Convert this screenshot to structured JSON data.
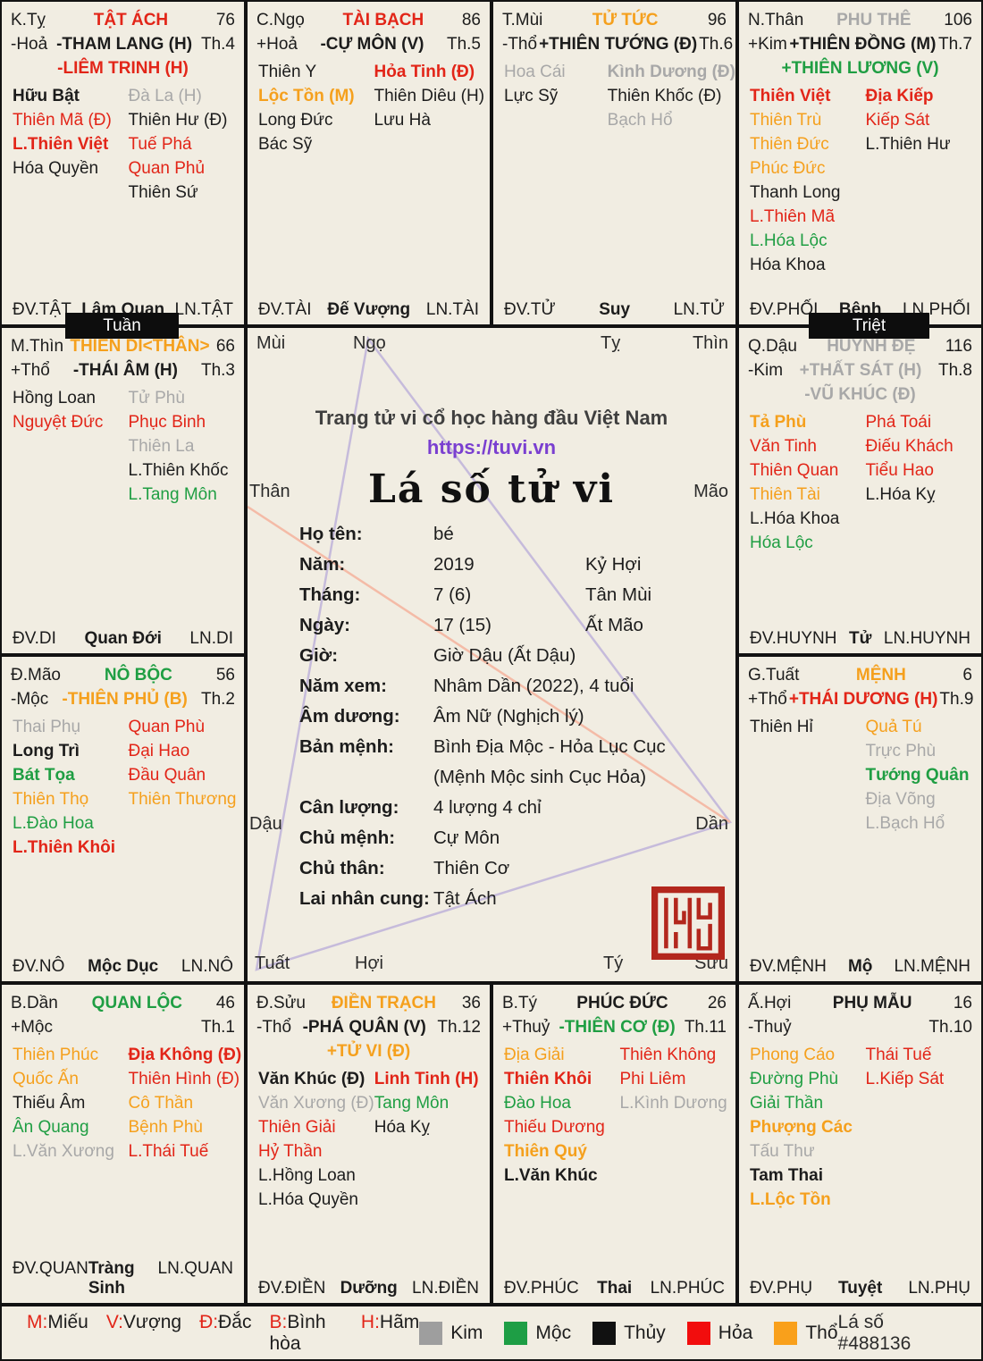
{
  "meta": {
    "tagline": "Trang tử vi cổ học hàng đầu Việt Nam",
    "url": "https://tuvi.vn",
    "title": "Lá số tử vi",
    "chart_id": "Lá số #488136"
  },
  "badges": {
    "tuan": "Tuần",
    "triet": "Triệt"
  },
  "center": {
    "corners": {
      "mui": "Mùi",
      "ngo": "Ngọ",
      "ty": "Tỵ",
      "thin": "Thìn",
      "than": "Thân",
      "mao": "Mão",
      "dau": "Dậu",
      "dan": "Dần",
      "tuat": "Tuất",
      "hoi": "Hợi",
      "ti": "Tý",
      "suu": "Sửu"
    },
    "info_rows": [
      {
        "label": "Họ tên:",
        "value": "bé",
        "extra": ""
      },
      {
        "label": "Năm:",
        "value": "2019",
        "extra": "Kỷ Hợi"
      },
      {
        "label": "Tháng:",
        "value": "7 (6)",
        "extra": "Tân Mùi"
      },
      {
        "label": "Ngày:",
        "value": "17 (15)",
        "extra": "Ất Mão"
      },
      {
        "label": "Giờ:",
        "value": "Giờ Dậu (Ất Dậu)",
        "extra": ""
      },
      {
        "label": "Năm xem:",
        "value": "Nhâm Dần (2022), 4 tuổi",
        "extra": ""
      },
      {
        "label": "Âm dương:",
        "value": "Âm Nữ (Nghịch lý)",
        "extra": ""
      },
      {
        "label": "Bản mệnh:",
        "value": "Bình Địa Mộc - Hỏa Lục Cục",
        "extra": ""
      },
      {
        "label": "",
        "value": "(Mệnh Mộc sinh Cục Hỏa)",
        "extra": ""
      },
      {
        "label": "Cân lượng:",
        "value": "4 lượng 4 chỉ",
        "extra": ""
      },
      {
        "label": "Chủ mệnh:",
        "value": "Cự Môn",
        "extra": ""
      },
      {
        "label": "Chủ thân:",
        "value": "Thiên Cơ",
        "extra": ""
      },
      {
        "label": "Lai nhân cung:",
        "value": "Tật Ách",
        "extra": ""
      }
    ]
  },
  "palaces": [
    {
      "branch": "K.Tỵ",
      "palace": "TẬT ÁCH",
      "palace_c": "r",
      "num": "76",
      "elem": "-Hoả",
      "star1": "-THAM LANG (H)",
      "star1_c": "k",
      "th": "Th.4",
      "star2": "-LIÊM TRINH (H)",
      "star2_c": "r",
      "left": [
        {
          "t": "Hữu Bật",
          "c": "k",
          "b": 1
        },
        {
          "t": "Thiên Mã (Đ)",
          "c": "r"
        },
        {
          "t": "L.Thiên Việt",
          "c": "r",
          "b": 1
        },
        {
          "t": "Hóa Quyền",
          "c": "k"
        }
      ],
      "right": [
        {
          "t": "Đà La (H)",
          "c": "a"
        },
        {
          "t": "Thiên Hư (Đ)",
          "c": "k"
        },
        {
          "t": "Tuế Phá",
          "c": "r"
        },
        {
          "t": "Quan Phủ",
          "c": "r"
        },
        {
          "t": "Thiên Sứ",
          "c": "k"
        }
      ],
      "foot_l": "ĐV.TẬT",
      "foot_m": "Lâm Quan",
      "foot_r": "LN.TẬT"
    },
    {
      "branch": "C.Ngọ",
      "palace": "TÀI BẠCH",
      "palace_c": "r",
      "num": "86",
      "elem": "+Hoả",
      "star1": "-CỰ MÔN (V)",
      "star1_c": "k",
      "th": "Th.5",
      "left": [
        {
          "t": "Thiên Y",
          "c": "k"
        },
        {
          "t": "Lộc Tồn (M)",
          "c": "o",
          "b": 1
        },
        {
          "t": "Long Đức",
          "c": "k"
        },
        {
          "t": "Bác Sỹ",
          "c": "k"
        }
      ],
      "right": [
        {
          "t": "Hỏa Tinh (Đ)",
          "c": "r",
          "b": 1
        },
        {
          "t": "Thiên Diêu (H)",
          "c": "k"
        },
        {
          "t": "Lưu Hà",
          "c": "k"
        }
      ],
      "foot_l": "ĐV.TÀI",
      "foot_m": "Đế Vượng",
      "foot_r": "LN.TÀI"
    },
    {
      "branch": "T.Mùi",
      "palace": "TỬ TỨC",
      "palace_c": "o",
      "num": "96",
      "elem": "-Thổ",
      "star1": "+THIÊN TƯỚNG (Đ)",
      "star1_c": "k",
      "th": "Th.6",
      "left": [
        {
          "t": "Hoa Cái",
          "c": "a"
        },
        {
          "t": "Lực Sỹ",
          "c": "k"
        }
      ],
      "right": [
        {
          "t": "Kình Dương (Đ)",
          "c": "a",
          "b": 1
        },
        {
          "t": "Thiên Khốc (Đ)",
          "c": "k"
        },
        {
          "t": "Bạch Hổ",
          "c": "a"
        }
      ],
      "foot_l": "ĐV.TỬ",
      "foot_m": "Suy",
      "foot_r": "LN.TỬ"
    },
    {
      "branch": "N.Thân",
      "palace": "PHU THÊ",
      "palace_c": "a",
      "num": "106",
      "elem": "+Kim",
      "star1": "+THIÊN ĐỒNG (M)",
      "star1_c": "k",
      "th": "Th.7",
      "star2": "+THIÊN LƯƠNG (V)",
      "star2_c": "g",
      "left": [
        {
          "t": "Thiên Việt",
          "c": "r",
          "b": 1
        },
        {
          "t": "Thiên Trù",
          "c": "o"
        },
        {
          "t": "Thiên Đức",
          "c": "o"
        },
        {
          "t": "Phúc Đức",
          "c": "o"
        },
        {
          "t": "Thanh Long",
          "c": "k"
        },
        {
          "t": "L.Thiên Mã",
          "c": "r"
        },
        {
          "t": "L.Hóa Lộc",
          "c": "g"
        },
        {
          "t": "Hóa Khoa",
          "c": "k"
        }
      ],
      "right": [
        {
          "t": "Địa Kiếp",
          "c": "r",
          "b": 1
        },
        {
          "t": "Kiếp Sát",
          "c": "r"
        },
        {
          "t": "L.Thiên Hư",
          "c": "k"
        }
      ],
      "foot_l": "ĐV.PHỐI",
      "foot_m": "Bệnh",
      "foot_r": "LN.PHỐI"
    },
    {
      "branch": "M.Thìn",
      "palace": "THIÊN DI<THÂN>",
      "palace_c": "o",
      "num": "66",
      "elem": "+Thổ",
      "star1": "-THÁI ÂM (H)",
      "star1_c": "k",
      "th": "Th.3",
      "left": [
        {
          "t": "Hồng Loan",
          "c": "k"
        },
        {
          "t": "Nguyệt Đức",
          "c": "r"
        }
      ],
      "right": [
        {
          "t": "Tử Phù",
          "c": "a"
        },
        {
          "t": "Phục Binh",
          "c": "r"
        },
        {
          "t": "Thiên La",
          "c": "a"
        },
        {
          "t": "L.Thiên Khốc",
          "c": "k"
        },
        {
          "t": "L.Tang Môn",
          "c": "g"
        }
      ],
      "foot_l": "ĐV.DI",
      "foot_m": "Quan Đới",
      "foot_r": "LN.DI"
    },
    {
      "branch": "Q.Dậu",
      "palace": "HUYNH ĐỆ",
      "palace_c": "a",
      "num": "116",
      "elem": "-Kim",
      "star1": "+THẤT SÁT (H)",
      "star1_c": "a",
      "th": "Th.8",
      "star2": "-VŨ KHÚC (Đ)",
      "star2_c": "a",
      "left": [
        {
          "t": "Tả Phù",
          "c": "o",
          "b": 1
        },
        {
          "t": "Văn Tinh",
          "c": "r"
        },
        {
          "t": "Thiên Quan",
          "c": "r"
        },
        {
          "t": "Thiên Tài",
          "c": "o"
        },
        {
          "t": "L.Hóa Khoa",
          "c": "k"
        },
        {
          "t": "Hóa Lộc",
          "c": "g"
        }
      ],
      "right": [
        {
          "t": "Phá Toái",
          "c": "r"
        },
        {
          "t": "Điếu Khách",
          "c": "r"
        },
        {
          "t": "Tiểu Hao",
          "c": "r"
        },
        {
          "t": "L.Hóa Kỵ",
          "c": "k"
        }
      ],
      "foot_l": "ĐV.HUYNH",
      "foot_m": "Tử",
      "foot_r": "LN.HUYNH"
    },
    {
      "branch": "Đ.Mão",
      "palace": "NÔ BỘC",
      "palace_c": "g",
      "num": "56",
      "elem": "-Mộc",
      "star1": "-THIÊN PHỦ (B)",
      "star1_c": "o",
      "th": "Th.2",
      "left": [
        {
          "t": "Thai Phụ",
          "c": "a"
        },
        {
          "t": "Long Trì",
          "c": "k",
          "b": 1
        },
        {
          "t": "Bát Tọa",
          "c": "g",
          "b": 1
        },
        {
          "t": "Thiên Thọ",
          "c": "o"
        },
        {
          "t": "L.Đào Hoa",
          "c": "g"
        },
        {
          "t": "L.Thiên Khôi",
          "c": "r",
          "b": 1
        }
      ],
      "right": [
        {
          "t": "Quan Phù",
          "c": "r"
        },
        {
          "t": "Đại Hao",
          "c": "r"
        },
        {
          "t": "Đầu Quân",
          "c": "r"
        },
        {
          "t": "Thiên Thương",
          "c": "o"
        }
      ],
      "foot_l": "ĐV.NÔ",
      "foot_m": "Mộc Dục",
      "foot_r": "LN.NÔ"
    },
    {
      "branch": "G.Tuất",
      "palace": "MỆNH",
      "palace_c": "o",
      "num": "6",
      "elem": "+Thổ",
      "star1": "+THÁI DƯƠNG (H)",
      "star1_c": "r",
      "th": "Th.9",
      "left": [
        {
          "t": "Thiên Hỉ",
          "c": "k"
        }
      ],
      "right": [
        {
          "t": "Quả Tú",
          "c": "o"
        },
        {
          "t": "Trực Phù",
          "c": "a"
        },
        {
          "t": "Tướng Quân",
          "c": "g",
          "b": 1
        },
        {
          "t": "Địa Võng",
          "c": "a"
        },
        {
          "t": "L.Bạch Hổ",
          "c": "a"
        }
      ],
      "foot_l": "ĐV.MỆNH",
      "foot_m": "Mộ",
      "foot_r": "LN.MỆNH"
    },
    {
      "branch": "B.Dần",
      "palace": "QUAN LỘC",
      "palace_c": "g",
      "num": "46",
      "elem": "+Mộc",
      "star1": "",
      "star1_c": "k",
      "th": "Th.1",
      "left": [
        {
          "t": "Thiên Phúc",
          "c": "o"
        },
        {
          "t": "Quốc Ấn",
          "c": "o"
        },
        {
          "t": "Thiếu Âm",
          "c": "k"
        },
        {
          "t": "Ân Quang",
          "c": "g"
        },
        {
          "t": "L.Văn Xương",
          "c": "a"
        }
      ],
      "right": [
        {
          "t": "Địa Không (Đ)",
          "c": "r",
          "b": 1
        },
        {
          "t": "Thiên Hình (Đ)",
          "c": "r"
        },
        {
          "t": "Cô Thần",
          "c": "o"
        },
        {
          "t": "Bệnh Phù",
          "c": "o"
        },
        {
          "t": "L.Thái Tuế",
          "c": "r"
        }
      ],
      "foot_l": "ĐV.QUAN",
      "foot_m": "Tràng Sinh",
      "foot_r": "LN.QUAN"
    },
    {
      "branch": "Đ.Sửu",
      "palace": "ĐIỀN TRẠCH",
      "palace_c": "o",
      "num": "36",
      "elem": "-Thổ",
      "star1": "-PHÁ QUÂN (V)",
      "star1_c": "k",
      "th": "Th.12",
      "star2": "+TỬ VI (Đ)",
      "star2_c": "o",
      "left": [
        {
          "t": "Văn Khúc (Đ)",
          "c": "k",
          "b": 1
        },
        {
          "t": "Văn Xương (Đ)",
          "c": "a"
        },
        {
          "t": "Thiên Giải",
          "c": "r"
        },
        {
          "t": "Hỷ Thần",
          "c": "r"
        },
        {
          "t": "L.Hồng Loan",
          "c": "k"
        },
        {
          "t": "L.Hóa Quyền",
          "c": "k"
        }
      ],
      "right": [
        {
          "t": "Linh Tinh (H)",
          "c": "r",
          "b": 1
        },
        {
          "t": "Tang Môn",
          "c": "g"
        },
        {
          "t": "Hóa Kỵ",
          "c": "k"
        }
      ],
      "foot_l": "ĐV.ĐIỀN",
      "foot_m": "Dưỡng",
      "foot_r": "LN.ĐIỀN"
    },
    {
      "branch": "B.Tý",
      "palace": "PHÚC ĐỨC",
      "palace_c": "k",
      "num": "26",
      "elem": "+Thuỷ",
      "star1": "-THIÊN CƠ (Đ)",
      "star1_c": "g",
      "th": "Th.11",
      "left": [
        {
          "t": "Địa Giải",
          "c": "o"
        },
        {
          "t": "Thiên Khôi",
          "c": "r",
          "b": 1
        },
        {
          "t": "Đào Hoa",
          "c": "g"
        },
        {
          "t": "Thiếu Dương",
          "c": "r"
        },
        {
          "t": "Thiên Quý",
          "c": "o",
          "b": 1
        },
        {
          "t": "L.Văn Khúc",
          "c": "k",
          "b": 1
        }
      ],
      "right": [
        {
          "t": "Thiên Không",
          "c": "r"
        },
        {
          "t": "Phi Liêm",
          "c": "r"
        },
        {
          "t": "L.Kình Dương",
          "c": "a"
        }
      ],
      "foot_l": "ĐV.PHÚC",
      "foot_m": "Thai",
      "foot_r": "LN.PHÚC"
    },
    {
      "branch": "Ấ.Hợi",
      "palace": "PHỤ MẪU",
      "palace_c": "k",
      "num": "16",
      "elem": "-Thuỷ",
      "star1": "",
      "star1_c": "k",
      "th": "Th.10",
      "left": [
        {
          "t": "Phong Cáo",
          "c": "o"
        },
        {
          "t": "Đường Phù",
          "c": "g"
        },
        {
          "t": "Giải Thần",
          "c": "g"
        },
        {
          "t": "Phượng Các",
          "c": "o",
          "b": 1
        },
        {
          "t": "Tấu Thư",
          "c": "a"
        },
        {
          "t": "Tam Thai",
          "c": "k",
          "b": 1
        },
        {
          "t": "L.Lộc Tồn",
          "c": "o",
          "b": 1
        }
      ],
      "right": [
        {
          "t": "Thái Tuế",
          "c": "r"
        },
        {
          "t": "L.Kiếp Sát",
          "c": "r"
        }
      ],
      "foot_l": "ĐV.PHỤ",
      "foot_m": "Tuyệt",
      "foot_r": "LN.PHỤ"
    }
  ],
  "legend": {
    "brightness": [
      {
        "key": "M:",
        "label": "Miếu"
      },
      {
        "key": "V:",
        "label": "Vượng"
      },
      {
        "key": "Đ:",
        "label": "Đắc"
      },
      {
        "key": "B:",
        "label": "Bình hòa"
      },
      {
        "key": "H:",
        "label": "Hãm"
      }
    ],
    "elements": [
      {
        "label": "Kim",
        "color": "#9e9e9e"
      },
      {
        "label": "Mộc",
        "color": "#1e9e45"
      },
      {
        "label": "Thủy",
        "color": "#111111"
      },
      {
        "label": "Hỏa",
        "color": "#f20d0d"
      },
      {
        "label": "Thổ",
        "color": "#f9a01b"
      }
    ]
  }
}
